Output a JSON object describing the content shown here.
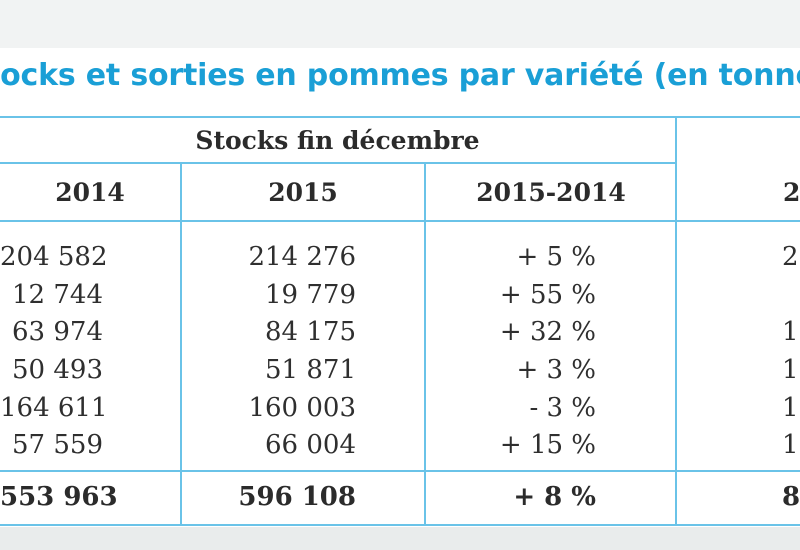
{
  "title": "tocks et sorties en pommes par variété (en tonne",
  "table": {
    "group_header": "Stocks fin décembre",
    "columns": [
      "2014",
      "2015",
      "2015-2014",
      "2"
    ],
    "rows": [
      {
        "y2014": "204 582",
        "y2015": "214 276",
        "diff": "+ 5 %",
        "next": "2"
      },
      {
        "y2014": "12 744",
        "y2015": "19 779",
        "diff": "+ 55 %",
        "next": ""
      },
      {
        "y2014": "63 974",
        "y2015": "84 175",
        "diff": "+ 32 %",
        "next": "1"
      },
      {
        "y2014": "50 493",
        "y2015": "51 871",
        "diff": "+ 3 %",
        "next": "1"
      },
      {
        "y2014": "164 611",
        "y2015": "160 003",
        "diff": "- 3 %",
        "next": "1"
      },
      {
        "y2014": "57 559",
        "y2015": "66 004",
        "diff": "+ 15 %",
        "next": "1"
      }
    ],
    "total": {
      "y2014": "553 963",
      "y2015": "596 108",
      "diff": "+ 8 %",
      "next": "8"
    }
  }
}
